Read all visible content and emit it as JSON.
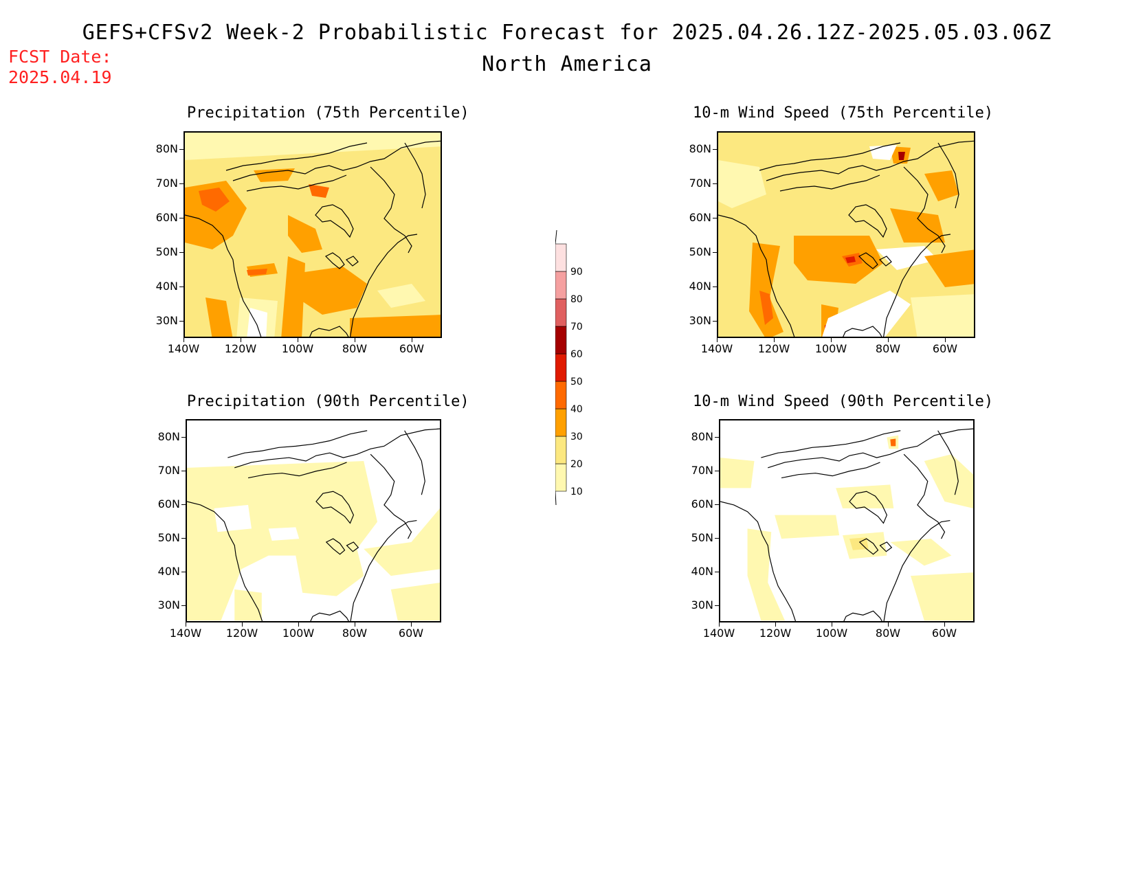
{
  "title": "GEFS+CFSv2 Week-2 Probabilistic Forecast for 2025.04.26.12Z-2025.05.03.06Z",
  "subtitle": "North America",
  "fcst_date_label": "FCST Date:",
  "fcst_date_value": "2025.04.19",
  "panels": [
    {
      "title": "Precipitation (75th Percentile)"
    },
    {
      "title": "10-m Wind Speed (75th Percentile)"
    },
    {
      "title": "Precipitation (90th Percentile)"
    },
    {
      "title": "10-m Wind Speed (90th Percentile)"
    }
  ],
  "lat_ticks": [
    "80N",
    "70N",
    "60N",
    "50N",
    "40N",
    "30N"
  ],
  "lon_ticks": [
    "140W",
    "120W",
    "100W",
    "80W",
    "60W"
  ],
  "colorbar": {
    "levels": [
      "10",
      "20",
      "30",
      "40",
      "50",
      "60",
      "70",
      "80",
      "90"
    ],
    "colors": [
      "#fff8b0",
      "#fce880",
      "#ffa000",
      "#ff6a00",
      "#e01a00",
      "#a50000",
      "#e06060",
      "#f5a0a0",
      "#fde0e0"
    ]
  }
}
